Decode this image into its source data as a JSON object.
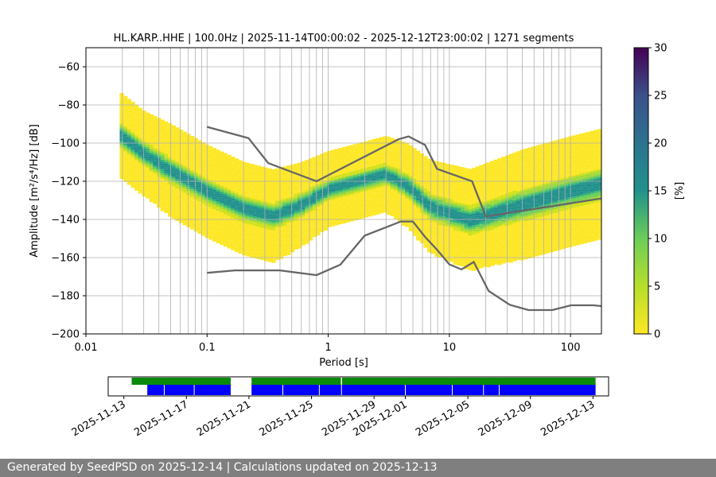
{
  "chart_data": [
    {
      "type": "heatmap",
      "title": "HL.KARP..HHE | 100.0Hz | 2025-11-14T00:00:02 - 2025-12-12T23:00:02 | 1271 segments",
      "xlabel": "Period [s]",
      "ylabel": "Amplitude [m²/s⁴/Hz] [dB]",
      "x_scale": "log",
      "xlim": [
        0.01,
        180
      ],
      "ylim": [
        -200,
        -50
      ],
      "x_ticks": [
        {
          "value": 0.01,
          "label": "0.01"
        },
        {
          "value": 0.1,
          "label": "0.1"
        },
        {
          "value": 1,
          "label": "1"
        },
        {
          "value": 10,
          "label": "10"
        },
        {
          "value": 100,
          "label": "100"
        }
      ],
      "y_ticks": [
        -60,
        -80,
        -100,
        -120,
        -140,
        -160,
        -180,
        -200
      ],
      "y_tick_labels": [
        "−60",
        "−80",
        "−100",
        "−120",
        "−140",
        "−160",
        "−180",
        "−200"
      ],
      "grid": true,
      "colorbar": {
        "label": "[%]",
        "min": 0,
        "max": 30,
        "ticks": [
          0,
          5,
          10,
          15,
          20,
          25,
          30
        ],
        "colormap": "viridis"
      },
      "density_ridge": [
        {
          "period": 0.019,
          "dB": -95,
          "spread": 10
        },
        {
          "period": 0.03,
          "dB": -105,
          "spread": 10
        },
        {
          "period": 0.05,
          "dB": -114,
          "spread": 11
        },
        {
          "period": 0.1,
          "dB": -125,
          "spread": 11
        },
        {
          "period": 0.2,
          "dB": -134,
          "spread": 11
        },
        {
          "period": 0.35,
          "dB": -138,
          "spread": 11
        },
        {
          "period": 0.6,
          "dB": -132,
          "spread": 10
        },
        {
          "period": 1.0,
          "dB": -124,
          "spread": 9
        },
        {
          "period": 2.0,
          "dB": -119,
          "spread": 9
        },
        {
          "period": 3.0,
          "dB": -116,
          "spread": 9
        },
        {
          "period": 4.5,
          "dB": -122,
          "spread": 10
        },
        {
          "period": 7.0,
          "dB": -133,
          "spread": 11
        },
        {
          "period": 15,
          "dB": -140,
          "spread": 12
        },
        {
          "period": 40,
          "dB": -132,
          "spread": 13
        },
        {
          "period": 100,
          "dB": -125,
          "spread": 13
        },
        {
          "period": 180,
          "dB": -121,
          "spread": 13
        }
      ],
      "series": [
        {
          "name": "",
          "color": "#666666",
          "periods": [
            0.1,
            0.22,
            0.32,
            0.8,
            3.8,
            4.6,
            6.3,
            7.9,
            15.4,
            20,
            180
          ],
          "values": [
            -91.5,
            -97.4,
            -110.5,
            -120,
            -98,
            -96.5,
            -101,
            -113.5,
            -120,
            -138.5,
            -129
          ]
        },
        {
          "name": "",
          "color": "#666666",
          "periods": [
            0.1,
            0.17,
            0.4,
            0.8,
            1.26,
            2.0,
            3.98,
            5.0,
            6.31,
            7.94,
            10,
            12.6,
            15.9,
            21.1,
            31.6,
            45,
            70.8,
            101,
            154,
            180
          ],
          "values": [
            -168,
            -166.7,
            -166.7,
            -169.2,
            -163.7,
            -148.5,
            -141.1,
            -141.1,
            -149.2,
            -156,
            -163.6,
            -166.2,
            -162.3,
            -177.5,
            -184.8,
            -187.5,
            -187.5,
            -185,
            -185,
            -185.4
          ]
        }
      ]
    },
    {
      "type": "timeline",
      "x_ticks": [
        "2025-11-13",
        "2025-11-17",
        "2025-11-21",
        "2025-11-25",
        "2025-11-29",
        "2025-12-01",
        "2025-12-05",
        "2025-12-09",
        "2025-12-13"
      ],
      "xlim": [
        "2025-11-12",
        "2025-12-14"
      ],
      "colors": {
        "coverage": "#0a8a0a",
        "segments": "#0000ff"
      },
      "coverage_intervals": [
        [
          "2025-11-13T12:00",
          "2025-11-19T20:00"
        ],
        [
          "2025-11-21T04:00",
          "2025-12-13T04:00"
        ]
      ],
      "segment_intervals": [
        [
          "2025-11-14T12:00",
          "2025-11-19T20:00"
        ],
        [
          "2025-11-21T04:00",
          "2025-12-13T04:00"
        ]
      ],
      "segment_gaps": [
        "2025-11-15T14:00",
        "2025-11-17T12:00",
        "2025-11-23T04:00",
        "2025-11-25T12:00",
        "2025-11-26T22:00",
        "2025-12-01T00:00",
        "2025-12-04T00:00",
        "2025-12-06T00:00",
        "2025-12-07T00:00"
      ],
      "coverage_gaps": [
        "2025-11-26T22:00"
      ]
    }
  ],
  "footer": {
    "text": "Generated by SeedPSD on 2025-12-14 | Calculations updated on 2025-12-13"
  }
}
